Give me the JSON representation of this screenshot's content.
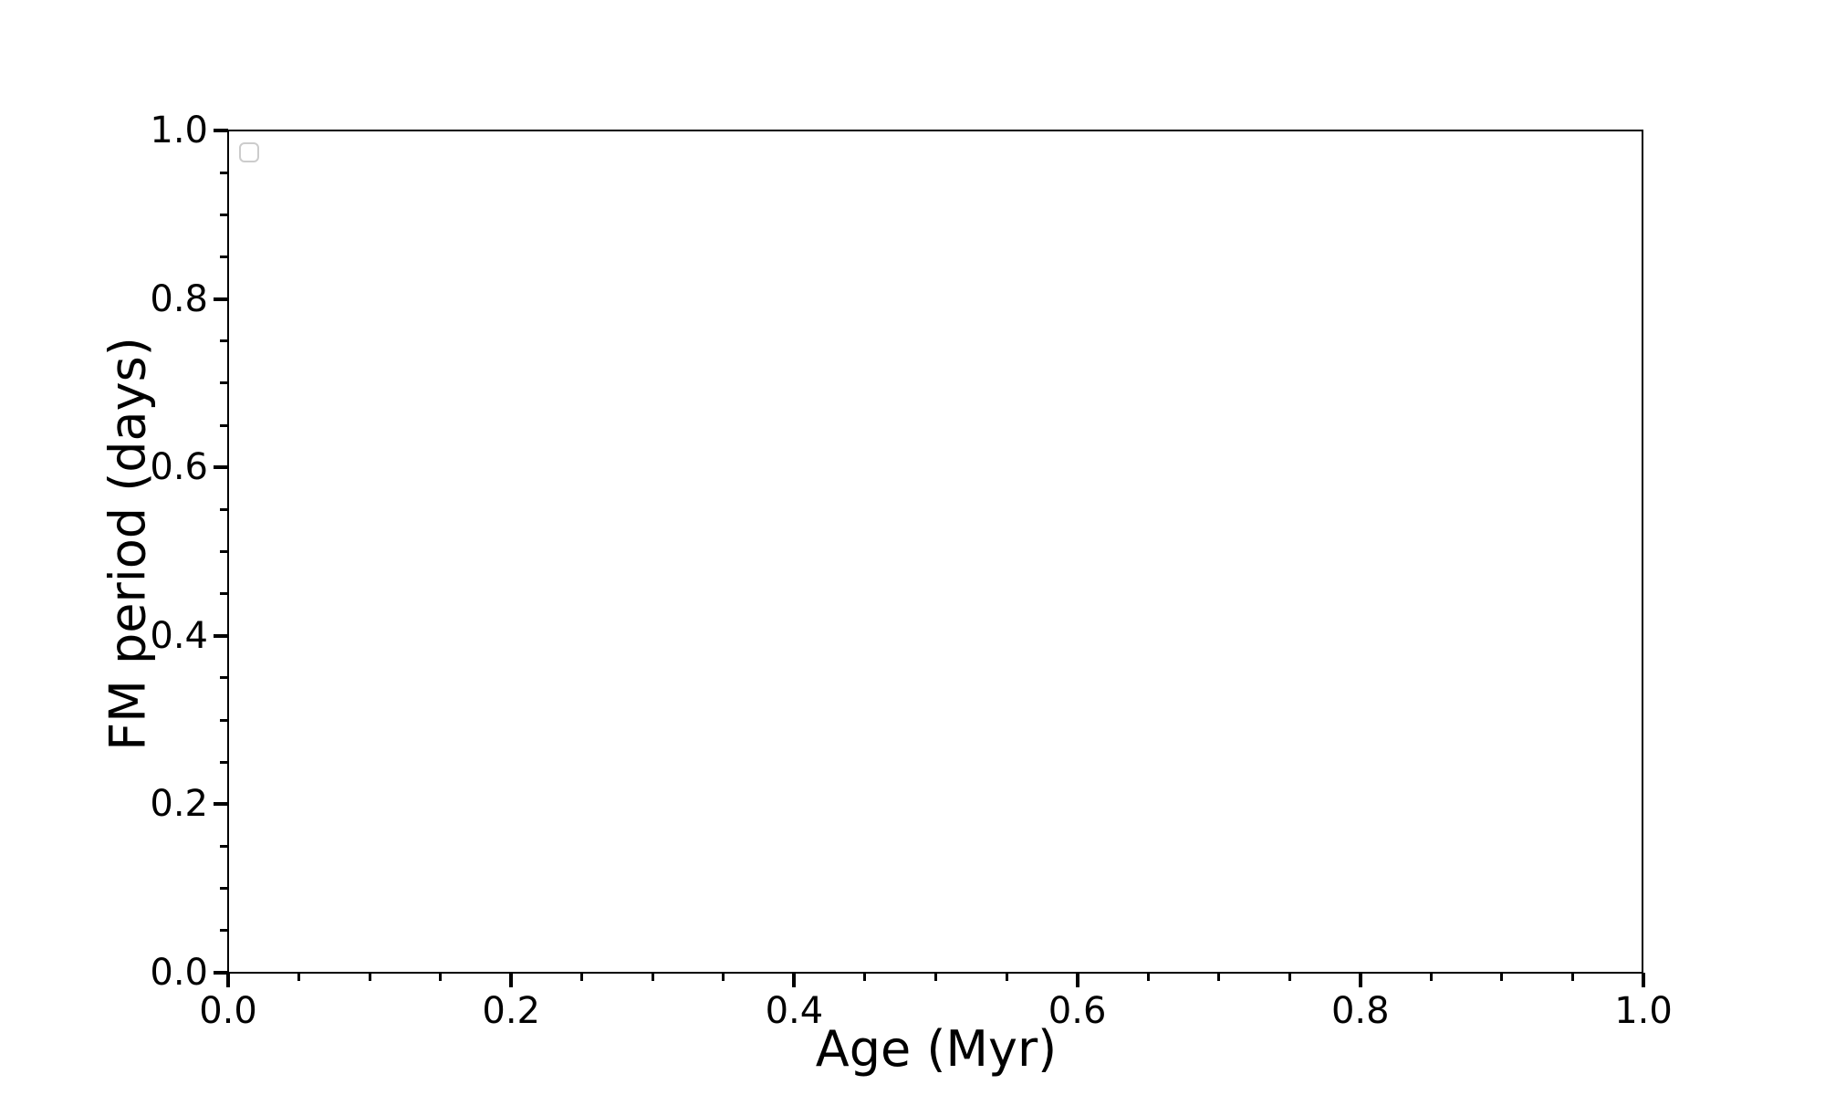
{
  "chart_data": {
    "type": "line",
    "title": "",
    "xlabel": "Age (Myr)",
    "ylabel": "FM period (days)",
    "xlim": [
      0.0,
      1.0
    ],
    "ylim": [
      0.0,
      1.0
    ],
    "xticks": {
      "values": [
        0.0,
        0.2,
        0.4,
        0.6,
        0.8,
        1.0
      ],
      "labels": [
        "0.0",
        "0.2",
        "0.4",
        "0.6",
        "0.8",
        "1.0"
      ]
    },
    "yticks": {
      "values": [
        0.0,
        0.2,
        0.4,
        0.6,
        0.8,
        1.0
      ],
      "labels": [
        "0.0",
        "0.2",
        "0.4",
        "0.6",
        "0.8",
        "1.0"
      ]
    },
    "minor_tick_step": 0.05,
    "grid": false,
    "series": [],
    "legend": {
      "visible": true,
      "position": "upper left",
      "entries": [],
      "frame_color": "#cccccc"
    },
    "axes_color": "#000000",
    "background_color": "#ffffff"
  }
}
